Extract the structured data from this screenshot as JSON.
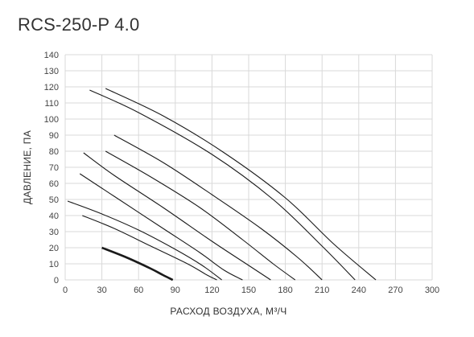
{
  "chart_data": {
    "type": "line",
    "title": "RCS-250-P 4.0",
    "xlabel": "РАСХОД ВОЗДУХА, М³/Ч",
    "ylabel": "ДАВЛЕНИЕ, ПА",
    "xlim": [
      0,
      300
    ],
    "ylim": [
      0,
      140
    ],
    "xticks": [
      "0",
      "30",
      "60",
      "90",
      "120",
      "150",
      "180",
      "210",
      "240",
      "270",
      "300"
    ],
    "yticks": [
      "0",
      "10",
      "20",
      "30",
      "40",
      "50",
      "60",
      "70",
      "80",
      "90",
      "100",
      "110",
      "120",
      "130",
      "140"
    ],
    "grid": true,
    "series": [
      {
        "bold": true,
        "points": [
          [
            30,
            20
          ],
          [
            50,
            14
          ],
          [
            70,
            7
          ],
          [
            80,
            3
          ],
          [
            88,
            0
          ]
        ]
      },
      {
        "bold": false,
        "points": [
          [
            14,
            40
          ],
          [
            40,
            32
          ],
          [
            70,
            21
          ],
          [
            100,
            10
          ],
          [
            116,
            3
          ],
          [
            124,
            0
          ]
        ]
      },
      {
        "bold": false,
        "points": [
          [
            2,
            49
          ],
          [
            30,
            41
          ],
          [
            60,
            31
          ],
          [
            90,
            19
          ],
          [
            112,
            9
          ],
          [
            128,
            0
          ]
        ]
      },
      {
        "bold": false,
        "points": [
          [
            12,
            66
          ],
          [
            40,
            52
          ],
          [
            80,
            32
          ],
          [
            110,
            17
          ],
          [
            130,
            6
          ],
          [
            145,
            0
          ]
        ]
      },
      {
        "bold": false,
        "points": [
          [
            15,
            79
          ],
          [
            40,
            65
          ],
          [
            80,
            45
          ],
          [
            120,
            24
          ],
          [
            150,
            9
          ],
          [
            168,
            0
          ]
        ]
      },
      {
        "bold": false,
        "points": [
          [
            33,
            80
          ],
          [
            70,
            64
          ],
          [
            110,
            45
          ],
          [
            145,
            25
          ],
          [
            170,
            10
          ],
          [
            188,
            0
          ]
        ]
      },
      {
        "bold": false,
        "points": [
          [
            40,
            90
          ],
          [
            80,
            73
          ],
          [
            120,
            53
          ],
          [
            160,
            32
          ],
          [
            190,
            14
          ],
          [
            210,
            0
          ]
        ]
      },
      {
        "bold": false,
        "points": [
          [
            20,
            118
          ],
          [
            60,
            104
          ],
          [
            120,
            78
          ],
          [
            170,
            50
          ],
          [
            210,
            21
          ],
          [
            237,
            0
          ]
        ]
      },
      {
        "bold": false,
        "points": [
          [
            33,
            119
          ],
          [
            80,
            102
          ],
          [
            130,
            79
          ],
          [
            180,
            51
          ],
          [
            220,
            22
          ],
          [
            254,
            0
          ]
        ]
      }
    ]
  }
}
